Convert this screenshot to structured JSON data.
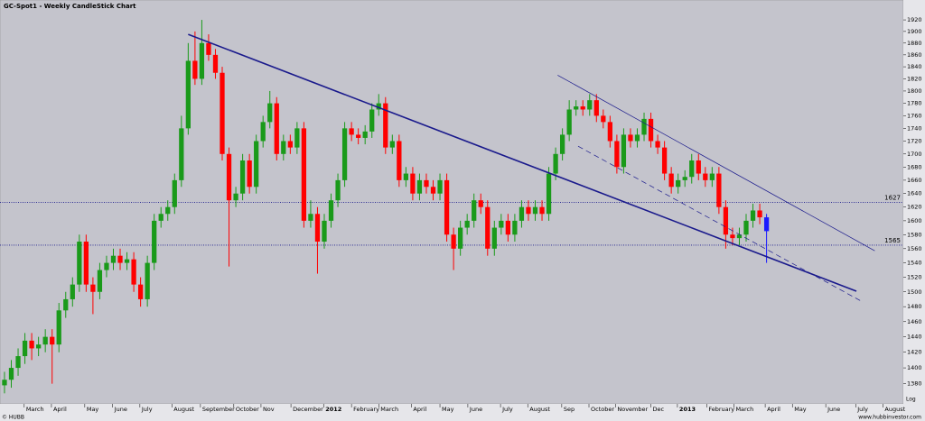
{
  "chart_data": {
    "type": "candlestick",
    "title": "GC-Spot1 - Weekly CandleStick Chart",
    "footer_left": "© HUBB",
    "footer_right": "www.hubbinvestor.com",
    "scale_label": "Log",
    "log_scale": true,
    "up_color": "#1a9a1a",
    "down_color": "#ff0000",
    "last_color": "#1a1aff",
    "line_color": "#1a1a8c",
    "xlim": [
      -0.66,
      132.1
    ],
    "ylim": [
      1355,
      1947
    ],
    "xticks": [
      {
        "value": 2.9,
        "label": "March"
      },
      {
        "value": 6.9,
        "label": "April"
      },
      {
        "value": 11.8,
        "label": "May"
      },
      {
        "value": 15.9,
        "label": "June"
      },
      {
        "value": 19.9,
        "label": "July"
      },
      {
        "value": 24.6,
        "label": "August"
      },
      {
        "value": 28.8,
        "label": "September"
      },
      {
        "value": 33.7,
        "label": "October"
      },
      {
        "value": 37.7,
        "label": "Nov"
      },
      {
        "value": 42.1,
        "label": "December"
      },
      {
        "value": 46.9,
        "label": "2012"
      },
      {
        "value": 51.0,
        "label": "February"
      },
      {
        "value": 55.0,
        "label": "March"
      },
      {
        "value": 59.8,
        "label": "April"
      },
      {
        "value": 64.0,
        "label": "May"
      },
      {
        "value": 68.1,
        "label": "June"
      },
      {
        "value": 72.9,
        "label": "July"
      },
      {
        "value": 76.9,
        "label": "August"
      },
      {
        "value": 81.9,
        "label": "Sep"
      },
      {
        "value": 85.9,
        "label": "October"
      },
      {
        "value": 89.8,
        "label": "November"
      },
      {
        "value": 95.0,
        "label": "Dec"
      },
      {
        "value": 98.9,
        "label": "2013"
      },
      {
        "value": 103.2,
        "label": "February"
      },
      {
        "value": 107.2,
        "label": "March"
      },
      {
        "value": 111.8,
        "label": "April"
      },
      {
        "value": 115.8,
        "label": "May"
      },
      {
        "value": 120.7,
        "label": "June"
      },
      {
        "value": 125.1,
        "label": "July"
      },
      {
        "value": 129.1,
        "label": "August"
      }
    ],
    "yticks": [
      1380,
      1400,
      1420,
      1440,
      1460,
      1480,
      1500,
      1520,
      1540,
      1560,
      1580,
      1600,
      1620,
      1640,
      1660,
      1680,
      1700,
      1720,
      1740,
      1760,
      1780,
      1800,
      1820,
      1840,
      1860,
      1880,
      1900,
      1920
    ],
    "open": [
      1378,
      1385,
      1400,
      1415,
      1435,
      1425,
      1430,
      1440,
      1430,
      1475,
      1490,
      1510,
      1570,
      1510,
      1500,
      1530,
      1540,
      1550,
      1540,
      1545,
      1510,
      1490,
      1540,
      1600,
      1610,
      1620,
      1660,
      1740,
      1850,
      1820,
      1880,
      1860,
      1830,
      1700,
      1630,
      1640,
      1690,
      1650,
      1720,
      1750,
      1780,
      1700,
      1720,
      1710,
      1740,
      1600,
      1610,
      1570,
      1600,
      1630,
      1660,
      1740,
      1730,
      1725,
      1735,
      1770,
      1780,
      1710,
      1720,
      1660,
      1670,
      1640,
      1660,
      1650,
      1640,
      1660,
      1580,
      1560,
      1590,
      1600,
      1630,
      1620,
      1560,
      1590,
      1600,
      1580,
      1600,
      1620,
      1610,
      1620,
      1610,
      1670,
      1700,
      1730,
      1770,
      1775,
      1770,
      1785,
      1760,
      1750,
      1720,
      1680,
      1730,
      1720,
      1730,
      1755,
      1720,
      1710,
      1670,
      1650,
      1660,
      1665,
      1690,
      1670,
      1660,
      1670,
      1620,
      1580,
      1575,
      1580,
      1600,
      1615,
      1605
    ],
    "high": [
      1395,
      1410,
      1425,
      1445,
      1445,
      1440,
      1450,
      1450,
      1485,
      1500,
      1520,
      1580,
      1580,
      1520,
      1540,
      1550,
      1560,
      1560,
      1555,
      1555,
      1520,
      1550,
      1610,
      1620,
      1630,
      1670,
      1760,
      1880,
      1900,
      1920,
      1895,
      1870,
      1840,
      1710,
      1650,
      1700,
      1700,
      1730,
      1760,
      1800,
      1790,
      1730,
      1730,
      1750,
      1750,
      1630,
      1620,
      1610,
      1640,
      1670,
      1750,
      1750,
      1740,
      1745,
      1780,
      1795,
      1790,
      1730,
      1730,
      1680,
      1680,
      1670,
      1670,
      1660,
      1670,
      1670,
      1590,
      1600,
      1610,
      1640,
      1640,
      1630,
      1600,
      1610,
      1610,
      1610,
      1630,
      1630,
      1630,
      1630,
      1680,
      1710,
      1740,
      1785,
      1785,
      1785,
      1795,
      1795,
      1770,
      1760,
      1730,
      1740,
      1740,
      1740,
      1765,
      1765,
      1730,
      1720,
      1680,
      1670,
      1675,
      1700,
      1700,
      1680,
      1680,
      1680,
      1630,
      1590,
      1590,
      1610,
      1625,
      1625,
      1610
    ],
    "low": [
      1368,
      1375,
      1390,
      1405,
      1410,
      1415,
      1420,
      1380,
      1420,
      1465,
      1480,
      1500,
      1500,
      1470,
      1490,
      1520,
      1530,
      1530,
      1530,
      1500,
      1480,
      1480,
      1530,
      1590,
      1600,
      1610,
      1650,
      1730,
      1810,
      1810,
      1850,
      1820,
      1690,
      1535,
      1620,
      1630,
      1640,
      1640,
      1710,
      1740,
      1690,
      1690,
      1700,
      1700,
      1590,
      1590,
      1525,
      1560,
      1590,
      1620,
      1650,
      1720,
      1715,
      1715,
      1725,
      1760,
      1700,
      1700,
      1650,
      1650,
      1630,
      1630,
      1640,
      1630,
      1630,
      1570,
      1530,
      1550,
      1580,
      1590,
      1610,
      1550,
      1550,
      1580,
      1570,
      1570,
      1590,
      1600,
      1600,
      1600,
      1600,
      1660,
      1690,
      1720,
      1760,
      1760,
      1760,
      1750,
      1740,
      1710,
      1670,
      1670,
      1710,
      1710,
      1720,
      1710,
      1700,
      1660,
      1640,
      1640,
      1650,
      1655,
      1660,
      1650,
      1650,
      1610,
      1560,
      1565,
      1565,
      1570,
      1590,
      1595,
      1540
    ],
    "close": [
      1385,
      1400,
      1415,
      1435,
      1425,
      1430,
      1440,
      1430,
      1475,
      1490,
      1510,
      1570,
      1510,
      1500,
      1530,
      1540,
      1550,
      1540,
      1545,
      1510,
      1490,
      1540,
      1600,
      1610,
      1620,
      1660,
      1740,
      1850,
      1820,
      1880,
      1860,
      1830,
      1700,
      1630,
      1640,
      1690,
      1650,
      1720,
      1750,
      1780,
      1700,
      1720,
      1710,
      1740,
      1600,
      1610,
      1570,
      1600,
      1630,
      1660,
      1740,
      1730,
      1725,
      1735,
      1770,
      1780,
      1710,
      1720,
      1660,
      1670,
      1640,
      1660,
      1650,
      1640,
      1660,
      1580,
      1560,
      1590,
      1600,
      1630,
      1620,
      1560,
      1590,
      1600,
      1580,
      1600,
      1620,
      1610,
      1620,
      1610,
      1670,
      1700,
      1730,
      1770,
      1775,
      1770,
      1785,
      1760,
      1750,
      1720,
      1680,
      1730,
      1720,
      1730,
      1755,
      1720,
      1710,
      1670,
      1650,
      1660,
      1665,
      1690,
      1670,
      1660,
      1670,
      1620,
      1580,
      1575,
      1580,
      1600,
      1615,
      1605,
      1585
    ],
    "levels": [
      1627,
      1565
    ],
    "trendlines": [
      {
        "x": [
          27,
          125.2
        ],
        "y": [
          1895,
          1501
        ],
        "width": 1.6,
        "dash": false
      },
      {
        "x": [
          81.3,
          127.9
        ],
        "y": [
          1826,
          1557
        ],
        "width": 0.7,
        "dash": false
      },
      {
        "x": [
          84.3,
          126.2
        ],
        "y": [
          1712,
          1486
        ],
        "width": 0.7,
        "dash": true
      }
    ]
  }
}
